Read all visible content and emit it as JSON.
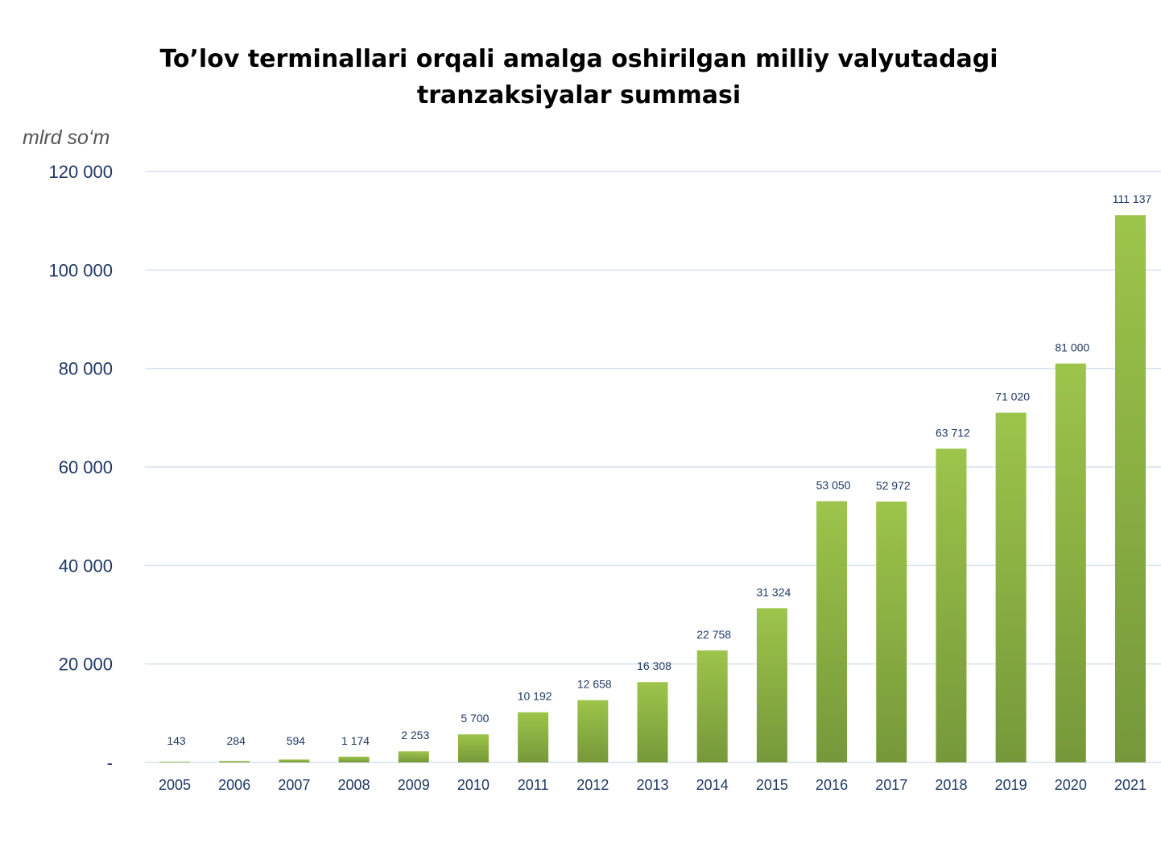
{
  "chart_data": {
    "type": "bar",
    "title": "To’lov terminallari orqali amalga oshirilgan milliy valyutadagi tranzaksiyalar summasi",
    "title_lines": [
      "To’lov terminallari orqali amalga oshirilgan milliy valyutadagi",
      "tranzaksiyalar summasi"
    ],
    "ylabel": "mlrd so‘m",
    "xlabel": "",
    "ylim": [
      0,
      120000
    ],
    "yticks": [
      0,
      20000,
      40000,
      60000,
      80000,
      100000,
      120000
    ],
    "ytick_labels": [
      "-",
      "20 000",
      "40 000",
      "60 000",
      "80 000",
      "100 000",
      "120 000"
    ],
    "grid": true,
    "categories": [
      "2005",
      "2006",
      "2007",
      "2008",
      "2009",
      "2010",
      "2011",
      "2012",
      "2013",
      "2014",
      "2015",
      "2016",
      "2017",
      "2018",
      "2019",
      "2020",
      "2021"
    ],
    "values": [
      143,
      284,
      594,
      1174,
      2253,
      5700,
      10192,
      12658,
      16308,
      22758,
      31324,
      53050,
      52972,
      63712,
      71020,
      81000,
      111137
    ],
    "data_labels": [
      "143",
      "284",
      "594",
      "1 174",
      "2 253",
      "5 700",
      "10 192",
      "12 658",
      "16 308",
      "22 758",
      "31 324",
      "53 050",
      "52 972",
      "63 712",
      "71 020",
      "81 000",
      "111 137"
    ],
    "colors": {
      "bar_top": "#9dc44a",
      "bar_bottom": "#76983a",
      "grid": "#d6e2ee",
      "text": "#1f3864"
    }
  }
}
